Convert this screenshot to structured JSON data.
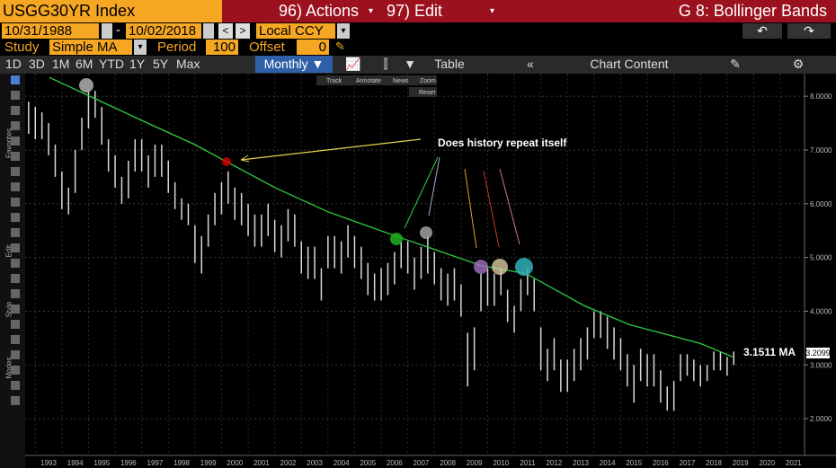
{
  "header": {
    "ticker": "USGG30YR Index",
    "actions": "96) Actions",
    "edit": "97) Edit",
    "function": "G 8: Bollinger Bands"
  },
  "dates": {
    "start": "10/31/1988",
    "separator": "-",
    "end": "10/02/2018",
    "currency": "Local CCY"
  },
  "study": {
    "label": "Study",
    "value": "Simple MA",
    "period_label": "Period",
    "period": 100,
    "offset_label": "Offset",
    "offset": 0
  },
  "toolbar": {
    "ranges": [
      "1D",
      "3D",
      "1M",
      "6M",
      "YTD",
      "1Y",
      "5Y",
      "Max"
    ],
    "frequency": "Monthly ▼",
    "table": "Table",
    "chart_content": "Chart Content"
  },
  "side_labels": [
    "Favorites",
    "Edit",
    "Style",
    "Modes"
  ],
  "chart_tools": [
    "Track",
    "Annotate",
    "News",
    "Zoom",
    "Reset"
  ],
  "chart_data": {
    "type": "bar",
    "annotation": "Does history repeat itself",
    "ma_label": "3.1511 MA",
    "last_price": 3.2099,
    "xlim": [
      1992.12,
      2021.41
    ],
    "ylim": [
      1.35,
      8.37
    ],
    "xticks": [
      1993,
      1994,
      1995,
      1996,
      1997,
      1998,
      1999,
      2000,
      2001,
      2002,
      2003,
      2004,
      2005,
      2006,
      2007,
      2008,
      2009,
      2010,
      2011,
      2012,
      2013,
      2014,
      2015,
      2016,
      2017,
      2018,
      2019,
      2020,
      2021
    ],
    "yticks": [
      {
        "value": 2,
        "label": "2.0000"
      },
      {
        "value": 3,
        "label": "3.0000"
      },
      {
        "value": 4,
        "label": "4.0000"
      },
      {
        "value": 5,
        "label": "5.0000"
      },
      {
        "value": 6,
        "label": "6.0000"
      },
      {
        "value": 7,
        "label": "7.0000"
      },
      {
        "value": 8,
        "label": "8.0000"
      }
    ],
    "grid": true,
    "bar_color": "#d8d8d8",
    "ma_color": "#2ecc40",
    "price_bars": [
      {
        "x": 1992.25,
        "low": 7.3,
        "high": 7.9
      },
      {
        "x": 1992.5,
        "low": 7.2,
        "high": 7.8
      },
      {
        "x": 1992.75,
        "low": 7.2,
        "high": 7.7
      },
      {
        "x": 1993.0,
        "low": 6.9,
        "high": 7.5
      },
      {
        "x": 1993.25,
        "low": 6.5,
        "high": 7.1
      },
      {
        "x": 1993.5,
        "low": 5.9,
        "high": 6.6
      },
      {
        "x": 1993.75,
        "low": 5.8,
        "high": 6.3
      },
      {
        "x": 1994.0,
        "low": 6.2,
        "high": 7.0
      },
      {
        "x": 1994.25,
        "low": 7.0,
        "high": 7.6
      },
      {
        "x": 1994.5,
        "low": 7.4,
        "high": 8.1
      },
      {
        "x": 1994.75,
        "low": 7.6,
        "high": 8.1
      },
      {
        "x": 1995.0,
        "low": 7.1,
        "high": 7.8
      },
      {
        "x": 1995.25,
        "low": 6.6,
        "high": 7.2
      },
      {
        "x": 1995.5,
        "low": 6.3,
        "high": 6.9
      },
      {
        "x": 1995.75,
        "low": 6.0,
        "high": 6.5
      },
      {
        "x": 1996.0,
        "low": 6.1,
        "high": 6.8
      },
      {
        "x": 1996.25,
        "low": 6.6,
        "high": 7.2
      },
      {
        "x": 1996.5,
        "low": 6.6,
        "high": 7.2
      },
      {
        "x": 1996.75,
        "low": 6.3,
        "high": 6.9
      },
      {
        "x": 1997.0,
        "low": 6.5,
        "high": 7.1
      },
      {
        "x": 1997.25,
        "low": 6.5,
        "high": 7.1
      },
      {
        "x": 1997.5,
        "low": 6.2,
        "high": 6.8
      },
      {
        "x": 1997.75,
        "low": 5.9,
        "high": 6.4
      },
      {
        "x": 1998.0,
        "low": 5.7,
        "high": 6.1
      },
      {
        "x": 1998.25,
        "low": 5.6,
        "high": 6.0
      },
      {
        "x": 1998.5,
        "low": 4.9,
        "high": 5.6
      },
      {
        "x": 1998.75,
        "low": 4.7,
        "high": 5.4
      },
      {
        "x": 1999.0,
        "low": 5.2,
        "high": 5.8
      },
      {
        "x": 1999.25,
        "low": 5.6,
        "high": 6.2
      },
      {
        "x": 1999.5,
        "low": 5.8,
        "high": 6.4
      },
      {
        "x": 1999.75,
        "low": 6.0,
        "high": 6.6
      },
      {
        "x": 2000.0,
        "low": 5.7,
        "high": 6.3
      },
      {
        "x": 2000.25,
        "low": 5.6,
        "high": 6.2
      },
      {
        "x": 2000.5,
        "low": 5.4,
        "high": 6.0
      },
      {
        "x": 2000.75,
        "low": 5.2,
        "high": 5.8
      },
      {
        "x": 2001.0,
        "low": 5.2,
        "high": 5.8
      },
      {
        "x": 2001.25,
        "low": 5.4,
        "high": 6.0
      },
      {
        "x": 2001.5,
        "low": 5.1,
        "high": 5.7
      },
      {
        "x": 2001.75,
        "low": 5.0,
        "high": 5.6
      },
      {
        "x": 2002.0,
        "low": 5.3,
        "high": 5.9
      },
      {
        "x": 2002.25,
        "low": 5.2,
        "high": 5.8
      },
      {
        "x": 2002.5,
        "low": 4.7,
        "high": 5.3
      },
      {
        "x": 2002.75,
        "low": 4.6,
        "high": 5.2
      },
      {
        "x": 2003.0,
        "low": 4.6,
        "high": 5.2
      },
      {
        "x": 2003.25,
        "low": 4.2,
        "high": 4.8
      },
      {
        "x": 2003.5,
        "low": 4.8,
        "high": 5.4
      },
      {
        "x": 2003.75,
        "low": 4.8,
        "high": 5.4
      },
      {
        "x": 2004.0,
        "low": 4.7,
        "high": 5.3
      },
      {
        "x": 2004.25,
        "low": 5.0,
        "high": 5.6
      },
      {
        "x": 2004.5,
        "low": 4.8,
        "high": 5.4
      },
      {
        "x": 2004.75,
        "low": 4.6,
        "high": 5.2
      },
      {
        "x": 2005.0,
        "low": 4.3,
        "high": 4.9
      },
      {
        "x": 2005.25,
        "low": 4.2,
        "high": 4.7
      },
      {
        "x": 2005.5,
        "low": 4.2,
        "high": 4.8
      },
      {
        "x": 2005.75,
        "low": 4.3,
        "high": 4.9
      },
      {
        "x": 2006.0,
        "low": 4.5,
        "high": 5.1
      },
      {
        "x": 2006.25,
        "low": 4.8,
        "high": 5.3
      },
      {
        "x": 2006.5,
        "low": 4.7,
        "high": 5.3
      },
      {
        "x": 2006.75,
        "low": 4.4,
        "high": 5.0
      },
      {
        "x": 2007.0,
        "low": 4.6,
        "high": 5.2
      },
      {
        "x": 2007.25,
        "low": 4.7,
        "high": 5.4
      },
      {
        "x": 2007.5,
        "low": 4.5,
        "high": 5.1
      },
      {
        "x": 2007.75,
        "low": 4.2,
        "high": 4.8
      },
      {
        "x": 2008.0,
        "low": 4.1,
        "high": 4.7
      },
      {
        "x": 2008.25,
        "low": 4.2,
        "high": 4.8
      },
      {
        "x": 2008.5,
        "low": 3.9,
        "high": 4.5
      },
      {
        "x": 2008.75,
        "low": 2.6,
        "high": 3.6
      },
      {
        "x": 2009.0,
        "low": 2.9,
        "high": 3.7
      },
      {
        "x": 2009.25,
        "low": 4.0,
        "high": 4.7
      },
      {
        "x": 2009.5,
        "low": 4.1,
        "high": 4.8
      },
      {
        "x": 2009.75,
        "low": 4.1,
        "high": 4.7
      },
      {
        "x": 2010.0,
        "low": 4.3,
        "high": 4.8
      },
      {
        "x": 2010.25,
        "low": 3.8,
        "high": 4.4
      },
      {
        "x": 2010.5,
        "low": 3.6,
        "high": 4.1
      },
      {
        "x": 2010.75,
        "low": 4.0,
        "high": 4.6
      },
      {
        "x": 2011.0,
        "low": 4.3,
        "high": 4.8
      },
      {
        "x": 2011.25,
        "low": 4.0,
        "high": 4.6
      },
      {
        "x": 2011.5,
        "low": 2.9,
        "high": 3.7
      },
      {
        "x": 2011.75,
        "low": 2.7,
        "high": 3.3
      },
      {
        "x": 2012.0,
        "low": 2.9,
        "high": 3.5
      },
      {
        "x": 2012.25,
        "low": 2.5,
        "high": 3.1
      },
      {
        "x": 2012.5,
        "low": 2.5,
        "high": 3.1
      },
      {
        "x": 2012.75,
        "low": 2.7,
        "high": 3.3
      },
      {
        "x": 2013.0,
        "low": 2.9,
        "high": 3.5
      },
      {
        "x": 2013.25,
        "low": 3.1,
        "high": 3.7
      },
      {
        "x": 2013.5,
        "low": 3.5,
        "high": 4.0
      },
      {
        "x": 2013.75,
        "low": 3.5,
        "high": 4.0
      },
      {
        "x": 2014.0,
        "low": 3.3,
        "high": 3.9
      },
      {
        "x": 2014.25,
        "low": 3.1,
        "high": 3.7
      },
      {
        "x": 2014.5,
        "low": 2.9,
        "high": 3.5
      },
      {
        "x": 2014.75,
        "low": 2.6,
        "high": 3.2
      },
      {
        "x": 2015.0,
        "low": 2.3,
        "high": 3.0
      },
      {
        "x": 2015.25,
        "low": 2.7,
        "high": 3.3
      },
      {
        "x": 2015.5,
        "low": 2.6,
        "high": 3.2
      },
      {
        "x": 2015.75,
        "low": 2.6,
        "high": 3.2
      },
      {
        "x": 2016.0,
        "low": 2.3,
        "high": 2.9
      },
      {
        "x": 2016.25,
        "low": 2.15,
        "high": 2.6
      },
      {
        "x": 2016.5,
        "low": 2.15,
        "high": 2.7
      },
      {
        "x": 2016.75,
        "low": 2.7,
        "high": 3.2
      },
      {
        "x": 2017.0,
        "low": 2.8,
        "high": 3.2
      },
      {
        "x": 2017.25,
        "low": 2.7,
        "high": 3.1
      },
      {
        "x": 2017.5,
        "low": 2.6,
        "high": 3.0
      },
      {
        "x": 2017.75,
        "low": 2.7,
        "high": 3.0
      },
      {
        "x": 2018.0,
        "low": 2.9,
        "high": 3.25
      },
      {
        "x": 2018.25,
        "low": 2.9,
        "high": 3.25
      },
      {
        "x": 2018.5,
        "low": 2.8,
        "high": 3.15
      },
      {
        "x": 2018.75,
        "low": 3.0,
        "high": 3.25
      }
    ],
    "ma_line": [
      {
        "x": 1993.03,
        "v": 8.35
      },
      {
        "x": 1994.55,
        "v": 8.0
      },
      {
        "x": 1996.5,
        "v": 7.55
      },
      {
        "x": 1998.5,
        "v": 7.1
      },
      {
        "x": 1999.62,
        "v": 6.8
      },
      {
        "x": 2001.5,
        "v": 6.3
      },
      {
        "x": 2003.5,
        "v": 5.85
      },
      {
        "x": 2006.04,
        "v": 5.4
      },
      {
        "x": 2007.22,
        "v": 5.2
      },
      {
        "x": 2009.25,
        "v": 4.85
      },
      {
        "x": 2010.94,
        "v": 4.7
      },
      {
        "x": 2013.14,
        "v": 4.1
      },
      {
        "x": 2014.83,
        "v": 3.75
      },
      {
        "x": 2017.5,
        "v": 3.4
      },
      {
        "x": 2018.71,
        "v": 3.15
      }
    ]
  }
}
